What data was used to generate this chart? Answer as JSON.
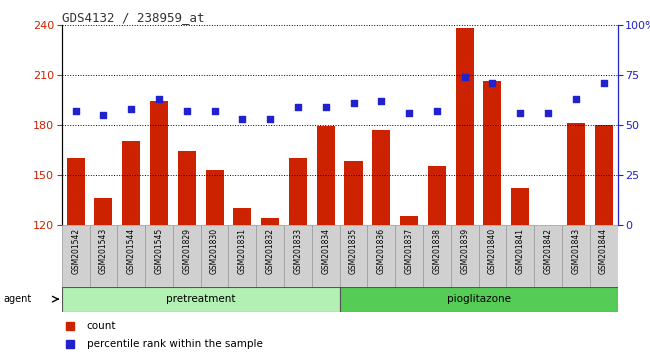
{
  "title": "GDS4132 / 238959_at",
  "samples": [
    "GSM201542",
    "GSM201543",
    "GSM201544",
    "GSM201545",
    "GSM201829",
    "GSM201830",
    "GSM201831",
    "GSM201832",
    "GSM201833",
    "GSM201834",
    "GSM201835",
    "GSM201836",
    "GSM201837",
    "GSM201838",
    "GSM201839",
    "GSM201840",
    "GSM201841",
    "GSM201842",
    "GSM201843",
    "GSM201844"
  ],
  "counts": [
    160,
    136,
    170,
    194,
    164,
    153,
    130,
    124,
    160,
    179,
    158,
    177,
    125,
    155,
    238,
    206,
    142,
    120,
    181,
    180
  ],
  "percentile": [
    57,
    55,
    58,
    63,
    57,
    57,
    53,
    53,
    59,
    59,
    61,
    62,
    56,
    57,
    74,
    71,
    56,
    56,
    63,
    71
  ],
  "groups": {
    "pretreatment": [
      0,
      9
    ],
    "pioglitazone": [
      10,
      19
    ]
  },
  "ylim_left": [
    120,
    240
  ],
  "ylim_right": [
    0,
    100
  ],
  "yticks_left": [
    120,
    150,
    180,
    210,
    240
  ],
  "yticks_right": [
    0,
    25,
    50,
    75,
    100
  ],
  "bar_color": "#cc2200",
  "dot_color": "#2222cc",
  "pretreatment_color": "#b3f0b3",
  "pioglitazone_color": "#55cc55",
  "tick_bg_color": "#d0d0d0",
  "left_tick_color": "#cc2200",
  "right_tick_color": "#2222cc",
  "bar_bottom": 120
}
